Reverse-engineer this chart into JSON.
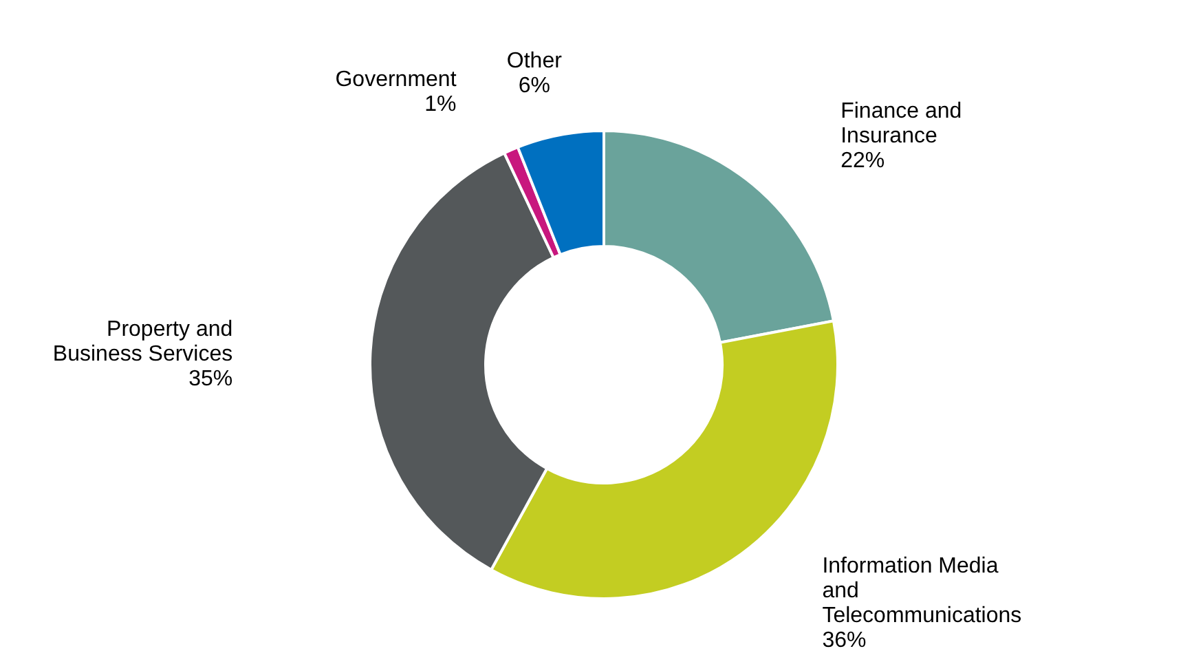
{
  "chart_data": {
    "type": "donut",
    "categories": [
      "Finance and Insurance",
      "Information Media and Telecommunications",
      "Property and Business Services",
      "Government",
      "Other"
    ],
    "values": [
      22,
      36,
      35,
      1,
      6
    ],
    "colors": [
      "#6aa39b",
      "#c3cd22",
      "#54585a",
      "#c8177e",
      "#0070c0"
    ],
    "value_labels": [
      "22%",
      "36%",
      "35%",
      "1%",
      "6%"
    ]
  }
}
